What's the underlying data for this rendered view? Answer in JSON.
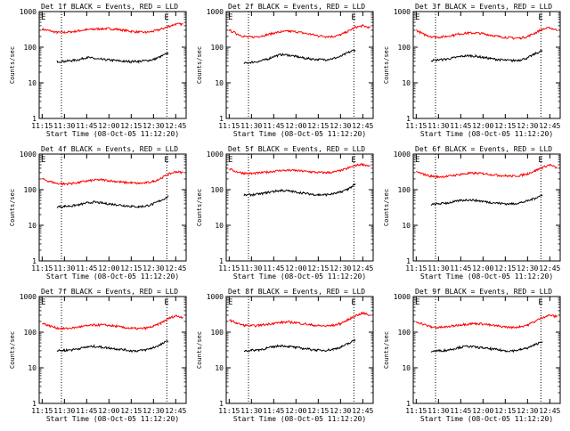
{
  "colors": {
    "events": "#000000",
    "lld": "#ff0000",
    "axes": "#000000",
    "background": "#ffffff"
  },
  "chart_data": [
    {
      "type": "line",
      "title": "Det 1f BLACK = Events, RED = LLD",
      "xlabel": "Start Time (08-Oct-05 11:12:20)",
      "ylabel": "Counts/sec",
      "yscale": "log",
      "ylim": [
        1,
        1000
      ],
      "xlim": [
        "11:13",
        "12:52"
      ],
      "x_ticks": [
        "11:15",
        "11:30",
        "11:45",
        "12:00",
        "12:15",
        "12:30",
        "12:45"
      ],
      "y_ticks": [
        "1",
        "10",
        "100",
        "1000"
      ],
      "markers": [
        {
          "time": "11:28",
          "label": ""
        },
        {
          "time": "12:39",
          "label": "E"
        }
      ],
      "corner_label": "E",
      "x": [
        "11:15",
        "11:20",
        "11:25",
        "11:30",
        "11:35",
        "11:40",
        "11:45",
        "11:50",
        "11:55",
        "12:00",
        "12:05",
        "12:10",
        "12:15",
        "12:20",
        "12:25",
        "12:30",
        "12:35",
        "12:40",
        "12:45",
        "12:50"
      ],
      "series": [
        {
          "name": "LLD",
          "color": "red",
          "values": [
            320,
            290,
            260,
            260,
            270,
            290,
            310,
            320,
            330,
            330,
            320,
            300,
            280,
            265,
            260,
            280,
            320,
            380,
            450,
            440
          ]
        },
        {
          "name": "Events",
          "color": "black",
          "values": [
            null,
            null,
            40,
            40,
            42,
            45,
            52,
            48,
            45,
            44,
            42,
            40,
            40,
            40,
            42,
            45,
            55,
            68,
            null,
            null
          ]
        }
      ]
    },
    {
      "type": "line",
      "title": "Det 2f BLACK = Events, RED = LLD",
      "xlabel": "Start Time (08-Oct-05 11:12:20)",
      "ylabel": "Counts/sec",
      "yscale": "log",
      "ylim": [
        1,
        1000
      ],
      "xlim": [
        "11:13",
        "12:52"
      ],
      "x_ticks": [
        "11:15",
        "11:30",
        "11:45",
        "12:00",
        "12:15",
        "12:30",
        "12:45"
      ],
      "y_ticks": [
        "1",
        "10",
        "100",
        "1000"
      ],
      "markers": [
        {
          "time": "11:28",
          "label": ""
        },
        {
          "time": "12:39",
          "label": "E"
        }
      ],
      "corner_label": "E",
      "x": [
        "11:15",
        "11:20",
        "11:25",
        "11:30",
        "11:35",
        "11:40",
        "11:45",
        "11:50",
        "11:55",
        "12:00",
        "12:05",
        "12:10",
        "12:15",
        "12:20",
        "12:25",
        "12:30",
        "12:35",
        "12:40",
        "12:45",
        "12:50"
      ],
      "series": [
        {
          "name": "LLD",
          "color": "red",
          "values": [
            300,
            240,
            200,
            190,
            200,
            220,
            250,
            270,
            280,
            270,
            250,
            230,
            210,
            200,
            200,
            220,
            280,
            360,
            400,
            350
          ]
        },
        {
          "name": "Events",
          "color": "black",
          "values": [
            null,
            null,
            35,
            38,
            40,
            45,
            55,
            62,
            60,
            55,
            50,
            47,
            45,
            45,
            48,
            55,
            70,
            85,
            null,
            null
          ]
        }
      ]
    },
    {
      "type": "line",
      "title": "Det 3f BLACK = Events, RED = LLD",
      "xlabel": "Start Time (08-Oct-05 11:12:20)",
      "ylabel": "Counts/sec",
      "yscale": "log",
      "ylim": [
        1,
        1000
      ],
      "xlim": [
        "11:13",
        "12:52"
      ],
      "x_ticks": [
        "11:15",
        "11:30",
        "11:45",
        "12:00",
        "12:15",
        "12:30",
        "12:45"
      ],
      "y_ticks": [
        "1",
        "10",
        "100",
        "1000"
      ],
      "markers": [
        {
          "time": "11:28",
          "label": ""
        },
        {
          "time": "12:39",
          "label": "E"
        }
      ],
      "corner_label": "E",
      "x": [
        "11:15",
        "11:20",
        "11:25",
        "11:30",
        "11:35",
        "11:40",
        "11:45",
        "11:50",
        "11:55",
        "12:00",
        "12:05",
        "12:10",
        "12:15",
        "12:20",
        "12:25",
        "12:30",
        "12:35",
        "12:40",
        "12:45",
        "12:50"
      ],
      "series": [
        {
          "name": "LLD",
          "color": "red",
          "values": [
            300,
            230,
            200,
            190,
            200,
            220,
            240,
            250,
            250,
            240,
            220,
            200,
            190,
            180,
            180,
            200,
            250,
            320,
            350,
            300
          ]
        },
        {
          "name": "Events",
          "color": "black",
          "values": [
            null,
            null,
            42,
            44,
            46,
            50,
            55,
            58,
            56,
            52,
            48,
            45,
            43,
            42,
            44,
            50,
            65,
            80,
            null,
            null
          ]
        }
      ]
    },
    {
      "type": "line",
      "title": "Det 4f BLACK = Events, RED = LLD",
      "xlabel": "Start Time (08-Oct-05 11:12:20)",
      "ylabel": "Counts/sec",
      "yscale": "log",
      "ylim": [
        1,
        1000
      ],
      "xlim": [
        "11:13",
        "12:52"
      ],
      "x_ticks": [
        "11:15",
        "11:30",
        "11:45",
        "12:00",
        "12:15",
        "12:30",
        "12:45"
      ],
      "y_ticks": [
        "1",
        "10",
        "100",
        "1000"
      ],
      "markers": [
        {
          "time": "11:28",
          "label": ""
        },
        {
          "time": "12:39",
          "label": "E"
        }
      ],
      "corner_label": "E",
      "x": [
        "11:15",
        "11:20",
        "11:25",
        "11:30",
        "11:35",
        "11:40",
        "11:45",
        "11:50",
        "11:55",
        "12:00",
        "12:05",
        "12:10",
        "12:15",
        "12:20",
        "12:25",
        "12:30",
        "12:35",
        "12:40",
        "12:45",
        "12:50"
      ],
      "series": [
        {
          "name": "LLD",
          "color": "red",
          "values": [
            200,
            170,
            150,
            145,
            150,
            160,
            175,
            185,
            190,
            180,
            170,
            160,
            155,
            150,
            155,
            170,
            210,
            270,
            320,
            300
          ]
        },
        {
          "name": "Events",
          "color": "black",
          "values": [
            null,
            null,
            33,
            34,
            35,
            38,
            42,
            45,
            42,
            40,
            38,
            36,
            34,
            33,
            35,
            40,
            50,
            65,
            null,
            null
          ]
        }
      ]
    },
    {
      "type": "line",
      "title": "Det 5f BLACK = Events, RED = LLD",
      "xlabel": "Start Time (08-Oct-05 11:12:20)",
      "ylabel": "Counts/sec",
      "yscale": "log",
      "ylim": [
        1,
        1000
      ],
      "xlim": [
        "11:13",
        "12:52"
      ],
      "x_ticks": [
        "11:15",
        "11:30",
        "11:45",
        "12:00",
        "12:15",
        "12:30",
        "12:45"
      ],
      "y_ticks": [
        "1",
        "10",
        "100",
        "1000"
      ],
      "markers": [
        {
          "time": "11:28",
          "label": ""
        },
        {
          "time": "12:39",
          "label": "E"
        }
      ],
      "corner_label": "E",
      "x": [
        "11:15",
        "11:20",
        "11:25",
        "11:30",
        "11:35",
        "11:40",
        "11:45",
        "11:50",
        "11:55",
        "12:00",
        "12:05",
        "12:10",
        "12:15",
        "12:20",
        "12:25",
        "12:30",
        "12:35",
        "12:40",
        "12:45",
        "12:50"
      ],
      "series": [
        {
          "name": "LLD",
          "color": "red",
          "values": [
            380,
            320,
            290,
            285,
            295,
            310,
            330,
            345,
            350,
            345,
            330,
            315,
            305,
            300,
            310,
            340,
            400,
            480,
            520,
            450
          ]
        },
        {
          "name": "Events",
          "color": "black",
          "values": [
            null,
            null,
            70,
            72,
            75,
            82,
            90,
            95,
            92,
            86,
            80,
            75,
            72,
            72,
            76,
            85,
            105,
            140,
            null,
            null
          ]
        }
      ]
    },
    {
      "type": "line",
      "title": "Det 6f BLACK = Events, RED = LLD",
      "xlabel": "Start Time (08-Oct-05 11:12:20)",
      "ylabel": "Counts/sec",
      "yscale": "log",
      "ylim": [
        1,
        1000
      ],
      "xlim": [
        "11:13",
        "12:52"
      ],
      "x_ticks": [
        "11:15",
        "11:30",
        "11:45",
        "12:00",
        "12:15",
        "12:30",
        "12:45"
      ],
      "y_ticks": [
        "1",
        "10",
        "100",
        "1000"
      ],
      "markers": [
        {
          "time": "11:28",
          "label": ""
        },
        {
          "time": "12:39",
          "label": "E"
        }
      ],
      "corner_label": "E",
      "x": [
        "11:15",
        "11:20",
        "11:25",
        "11:30",
        "11:35",
        "11:40",
        "11:45",
        "11:50",
        "11:55",
        "12:00",
        "12:05",
        "12:10",
        "12:15",
        "12:20",
        "12:25",
        "12:30",
        "12:35",
        "12:40",
        "12:45",
        "12:50"
      ],
      "series": [
        {
          "name": "LLD",
          "color": "red",
          "values": [
            320,
            270,
            240,
            230,
            235,
            250,
            270,
            285,
            290,
            285,
            270,
            255,
            245,
            240,
            250,
            280,
            340,
            420,
            500,
            400
          ]
        },
        {
          "name": "Events",
          "color": "black",
          "values": [
            null,
            null,
            38,
            40,
            42,
            45,
            50,
            52,
            50,
            47,
            44,
            42,
            40,
            40,
            43,
            48,
            58,
            70,
            null,
            null
          ]
        }
      ]
    },
    {
      "type": "line",
      "title": "Det 7f BLACK = Events, RED = LLD",
      "xlabel": "Start Time (08-Oct-05 11:12:20)",
      "ylabel": "Counts/sec",
      "yscale": "log",
      "ylim": [
        1,
        1000
      ],
      "xlim": [
        "11:13",
        "12:52"
      ],
      "x_ticks": [
        "11:15",
        "11:30",
        "11:45",
        "12:00",
        "12:15",
        "12:30",
        "12:45"
      ],
      "y_ticks": [
        "1",
        "10",
        "100",
        "1000"
      ],
      "markers": [
        {
          "time": "11:28",
          "label": ""
        },
        {
          "time": "12:39",
          "label": "E"
        }
      ],
      "corner_label": "E",
      "x": [
        "11:15",
        "11:20",
        "11:25",
        "11:30",
        "11:35",
        "11:40",
        "11:45",
        "11:50",
        "11:55",
        "12:00",
        "12:05",
        "12:10",
        "12:15",
        "12:20",
        "12:25",
        "12:30",
        "12:35",
        "12:40",
        "12:45",
        "12:50"
      ],
      "series": [
        {
          "name": "LLD",
          "color": "red",
          "values": [
            180,
            150,
            130,
            125,
            130,
            140,
            150,
            158,
            160,
            155,
            145,
            135,
            128,
            125,
            130,
            145,
            180,
            240,
            290,
            260
          ]
        },
        {
          "name": "Events",
          "color": "black",
          "values": [
            null,
            null,
            30,
            31,
            32,
            35,
            38,
            40,
            38,
            36,
            34,
            32,
            30,
            30,
            32,
            37,
            45,
            58,
            null,
            null
          ]
        }
      ]
    },
    {
      "type": "line",
      "title": "Det 8f BLACK = Events, RED = LLD",
      "xlabel": "Start Time (08-Oct-05 11:12:20)",
      "ylabel": "Counts/sec",
      "yscale": "log",
      "ylim": [
        1,
        1000
      ],
      "xlim": [
        "11:13",
        "12:52"
      ],
      "x_ticks": [
        "11:15",
        "11:30",
        "11:45",
        "12:00",
        "12:15",
        "12:30",
        "12:45"
      ],
      "y_ticks": [
        "1",
        "10",
        "100",
        "1000"
      ],
      "markers": [
        {
          "time": "11:28",
          "label": ""
        },
        {
          "time": "12:39",
          "label": "E"
        }
      ],
      "corner_label": "E",
      "x": [
        "11:15",
        "11:20",
        "11:25",
        "11:30",
        "11:35",
        "11:40",
        "11:45",
        "11:50",
        "11:55",
        "12:00",
        "12:05",
        "12:10",
        "12:15",
        "12:20",
        "12:25",
        "12:30",
        "12:35",
        "12:40",
        "12:45",
        "12:50"
      ],
      "series": [
        {
          "name": "LLD",
          "color": "red",
          "values": [
            220,
            180,
            155,
            150,
            155,
            165,
            178,
            188,
            192,
            185,
            172,
            160,
            152,
            148,
            155,
            175,
            220,
            290,
            340,
            300
          ]
        },
        {
          "name": "Events",
          "color": "black",
          "values": [
            null,
            null,
            30,
            31,
            32,
            35,
            39,
            42,
            40,
            37,
            35,
            33,
            31,
            31,
            33,
            38,
            47,
            60,
            null,
            null
          ]
        }
      ]
    },
    {
      "type": "line",
      "title": "Det 9f BLACK = Events, RED = LLD",
      "xlabel": "Start Time (08-Oct-05 11:12:20)",
      "ylabel": "Counts/sec",
      "yscale": "log",
      "ylim": [
        1,
        1000
      ],
      "xlim": [
        "11:13",
        "12:52"
      ],
      "x_ticks": [
        "11:15",
        "11:30",
        "11:45",
        "12:00",
        "12:15",
        "12:30",
        "12:45"
      ],
      "y_ticks": [
        "1",
        "10",
        "100",
        "1000"
      ],
      "markers": [
        {
          "time": "11:28",
          "label": ""
        },
        {
          "time": "12:39",
          "label": "E"
        }
      ],
      "corner_label": "E",
      "x": [
        "11:15",
        "11:20",
        "11:25",
        "11:30",
        "11:35",
        "11:40",
        "11:45",
        "11:50",
        "11:55",
        "12:00",
        "12:05",
        "12:10",
        "12:15",
        "12:20",
        "12:25",
        "12:30",
        "12:35",
        "12:40",
        "12:45",
        "12:50"
      ],
      "series": [
        {
          "name": "LLD",
          "color": "red",
          "values": [
            200,
            165,
            140,
            135,
            140,
            150,
            162,
            170,
            175,
            170,
            158,
            148,
            140,
            136,
            142,
            160,
            200,
            260,
            300,
            270
          ]
        },
        {
          "name": "Events",
          "color": "black",
          "values": [
            null,
            null,
            29,
            30,
            31,
            34,
            38,
            40,
            38,
            36,
            34,
            32,
            30,
            30,
            32,
            36,
            44,
            56,
            null,
            null
          ]
        }
      ]
    }
  ]
}
